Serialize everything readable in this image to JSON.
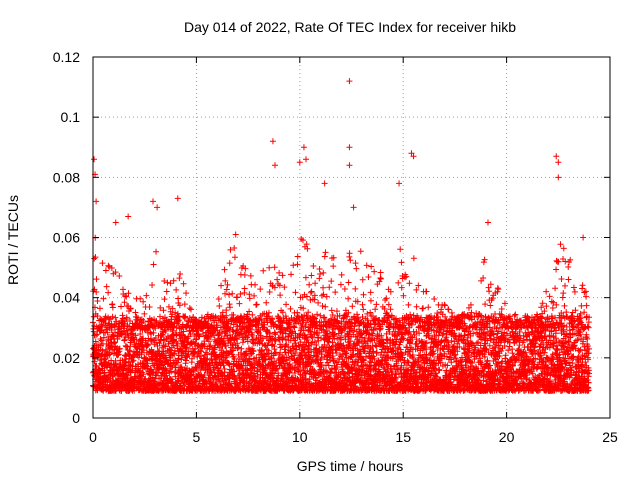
{
  "chart_data": {
    "type": "scatter",
    "title": "Day 014 of 2022, Rate Of TEC Index for receiver hikb",
    "xlabel": "GPS time / hours",
    "ylabel": "ROTI / TECUs",
    "xlim": [
      0,
      25
    ],
    "ylim": [
      0,
      0.12
    ],
    "xticks": [
      0,
      5,
      10,
      15,
      20,
      25
    ],
    "xtick_labels": [
      "0",
      "5",
      "10",
      "15",
      "20",
      "25"
    ],
    "yticks": [
      0,
      0.02,
      0.04,
      0.06,
      0.08,
      0.1,
      0.12
    ],
    "ytick_labels": [
      "0",
      "0.02",
      "0.04",
      "0.06",
      "0.08",
      "0.1",
      "0.12"
    ],
    "grid": true,
    "marker": "plus",
    "color": "#ff0000",
    "series": [
      {
        "name": "ROTI",
        "note": "dense scatter, ~1 point per 30 s across 0-24 h; notable peaks listed",
        "peaks": [
          {
            "x": 0.05,
            "y": 0.086
          },
          {
            "x": 0.1,
            "y": 0.081
          },
          {
            "x": 0.15,
            "y": 0.072
          },
          {
            "x": 1.1,
            "y": 0.065
          },
          {
            "x": 1.7,
            "y": 0.067
          },
          {
            "x": 2.9,
            "y": 0.072
          },
          {
            "x": 3.1,
            "y": 0.07
          },
          {
            "x": 4.1,
            "y": 0.073
          },
          {
            "x": 6.9,
            "y": 0.061
          },
          {
            "x": 8.7,
            "y": 0.092
          },
          {
            "x": 8.8,
            "y": 0.084
          },
          {
            "x": 10.0,
            "y": 0.085
          },
          {
            "x": 10.2,
            "y": 0.09
          },
          {
            "x": 10.3,
            "y": 0.086
          },
          {
            "x": 11.2,
            "y": 0.078
          },
          {
            "x": 12.4,
            "y": 0.112
          },
          {
            "x": 12.4,
            "y": 0.09
          },
          {
            "x": 12.4,
            "y": 0.084
          },
          {
            "x": 12.6,
            "y": 0.07
          },
          {
            "x": 14.8,
            "y": 0.078
          },
          {
            "x": 15.4,
            "y": 0.088
          },
          {
            "x": 15.5,
            "y": 0.087
          },
          {
            "x": 19.1,
            "y": 0.065
          },
          {
            "x": 22.4,
            "y": 0.087
          },
          {
            "x": 22.5,
            "y": 0.085
          },
          {
            "x": 22.5,
            "y": 0.08
          },
          {
            "x": 23.7,
            "y": 0.06
          }
        ],
        "baseline_range": [
          0.005,
          0.03
        ],
        "envelope_hours": [
          0,
          0.5,
          1,
          1.5,
          2,
          2.5,
          3,
          3.5,
          4,
          4.5,
          5,
          5.5,
          6,
          6.5,
          7,
          7.5,
          8,
          8.5,
          9,
          9.5,
          10,
          10.5,
          11,
          11.5,
          12,
          12.5,
          13,
          13.5,
          14,
          14.5,
          15,
          15.5,
          16,
          16.5,
          17,
          17.5,
          18,
          18.5,
          19,
          19.5,
          20,
          20.5,
          21,
          21.5,
          22,
          22.5,
          23,
          23.5,
          24
        ],
        "envelope_upper": [
          0.062,
          0.055,
          0.05,
          0.048,
          0.04,
          0.042,
          0.058,
          0.045,
          0.05,
          0.045,
          0.03,
          0.035,
          0.04,
          0.055,
          0.06,
          0.05,
          0.045,
          0.055,
          0.05,
          0.048,
          0.065,
          0.06,
          0.058,
          0.055,
          0.05,
          0.06,
          0.055,
          0.05,
          0.048,
          0.045,
          0.065,
          0.058,
          0.045,
          0.04,
          0.038,
          0.035,
          0.035,
          0.04,
          0.058,
          0.045,
          0.04,
          0.035,
          0.03,
          0.035,
          0.045,
          0.06,
          0.055,
          0.042,
          0.05
        ]
      }
    ]
  }
}
